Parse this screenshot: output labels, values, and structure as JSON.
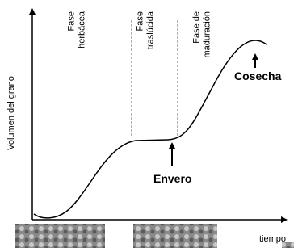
{
  "axes": {
    "y_label": "Volumen del grano",
    "x_label": "tiempo"
  },
  "phases": [
    {
      "lines": [
        "Fase",
        "herbácea"
      ]
    },
    {
      "lines": [
        "Fase",
        "traslúcida"
      ]
    },
    {
      "lines": [
        "Fase de",
        "maduración"
      ]
    }
  ],
  "annotations": {
    "veraison": "Envero",
    "harvest": "Cosecha"
  }
}
